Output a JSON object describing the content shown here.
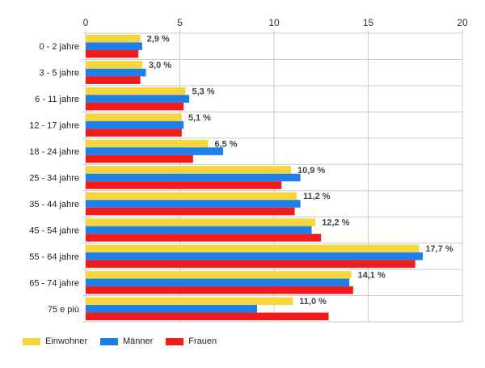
{
  "chart_data": {
    "type": "bar",
    "orientation": "horizontal",
    "categories": [
      "0 - 2 jahre",
      "3 - 5 jahre",
      "6 - 11 jahre",
      "12 - 17 jahre",
      "18 - 24 jahre",
      "25 - 34 jahre",
      "35 - 44 jahre",
      "45 - 54 jahre",
      "55 - 64 jahre",
      "65 - 74 jahre",
      "75 e più"
    ],
    "series": [
      {
        "name": "Einwohner",
        "color": "#f5d63d",
        "values": [
          2.9,
          3.0,
          5.3,
          5.1,
          6.5,
          10.9,
          11.2,
          12.2,
          17.7,
          14.1,
          11.0
        ]
      },
      {
        "name": "Männer",
        "color": "#1f7fe8",
        "values": [
          3.0,
          3.2,
          5.5,
          5.2,
          7.3,
          11.4,
          11.4,
          12.0,
          17.9,
          14.0,
          9.1
        ]
      },
      {
        "name": "Frauen",
        "color": "#f01c1c",
        "values": [
          2.8,
          2.9,
          5.2,
          5.1,
          5.7,
          10.4,
          11.1,
          12.5,
          17.5,
          14.2,
          12.9
        ]
      }
    ],
    "data_labels": [
      "2,9 %",
      "3,0 %",
      "5,3 %",
      "5,1 %",
      "6,5 %",
      "10,9 %",
      "11,2 %",
      "12,2 %",
      "17,7 %",
      "14,1 %",
      "11,0 %"
    ],
    "xlim": [
      0,
      20
    ],
    "xticks": [
      "0",
      "5",
      "10",
      "15",
      "20"
    ],
    "x_axis_position": "top",
    "grid": true,
    "legend_position": "bottom-left"
  }
}
